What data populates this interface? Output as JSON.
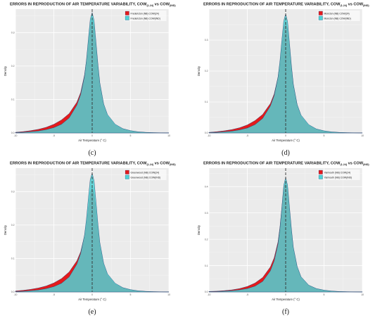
{
  "colors": {
    "panel_bg": "#ebebeb",
    "grid_major": "#ffffff",
    "grid_minor": "#f4f4f4",
    "series_24": "#e41a1c",
    "series_ind": "#4fd3d6",
    "outline": "#1f3a6b"
  },
  "chart_data": [
    {
      "type": "area",
      "caption": "(c)",
      "title_main": "ERRORS IN REPRODUCTION OF AIR TEMPERATURE VARIABILITY, COW",
      "title_sub1": "(1-24)",
      "title_vs": " vs COW",
      "title_sub2": "(IND)",
      "xlabel": "Air Temperature (° C)",
      "ylabel": "Density",
      "xlim": [
        -10,
        10
      ],
      "ylim": [
        0,
        0.37
      ],
      "x_ticks": [
        "-10",
        "-5",
        "0",
        "5",
        "10"
      ],
      "y_ticks": [
        "0.0",
        "0.1",
        "0.2",
        "0.3"
      ],
      "x_tick_values": [
        -10,
        -5,
        0,
        5,
        10
      ],
      "y_tick_values": [
        0,
        0.1,
        0.2,
        0.3
      ],
      "vline_x": 0,
      "series": [
        {
          "name": "Fredericton (NB) COW(24)",
          "x": [
            -10,
            -9,
            -8,
            -7,
            -6,
            -5,
            -4,
            -3,
            -2,
            -1.5,
            -1,
            -0.75,
            -0.5,
            -0.25,
            0,
            0.25,
            0.5,
            0.75,
            1,
            1.5,
            2,
            3,
            4,
            5,
            6,
            7,
            8,
            9,
            10
          ],
          "y": [
            0.002,
            0.004,
            0.007,
            0.011,
            0.017,
            0.026,
            0.039,
            0.058,
            0.092,
            0.121,
            0.173,
            0.215,
            0.27,
            0.322,
            0.34,
            0.318,
            0.262,
            0.2,
            0.146,
            0.084,
            0.052,
            0.024,
            0.012,
            0.006,
            0.003,
            0.0015,
            0.0008,
            0.0004,
            0.0002
          ]
        },
        {
          "name": "Fredericton (NB) COW(IND)",
          "x": [
            -10,
            -9,
            -8,
            -7,
            -6,
            -5,
            -4,
            -3,
            -2,
            -1.5,
            -1,
            -0.75,
            -0.5,
            -0.25,
            0,
            0.25,
            0.5,
            0.75,
            1,
            1.5,
            2,
            3,
            4,
            5,
            6,
            7,
            8,
            9,
            10
          ],
          "y": [
            0.001,
            0.002,
            0.004,
            0.006,
            0.01,
            0.016,
            0.026,
            0.045,
            0.083,
            0.115,
            0.17,
            0.218,
            0.28,
            0.34,
            0.36,
            0.336,
            0.272,
            0.206,
            0.15,
            0.087,
            0.055,
            0.026,
            0.013,
            0.007,
            0.0035,
            0.0018,
            0.0009,
            0.0005,
            0.0002
          ]
        }
      ]
    },
    {
      "type": "area",
      "caption": "(d)",
      "title_main": "ERRORS IN REPRODUCTION OF AIR TEMPERATURE VARIABILITY, COW",
      "title_sub1": "(1-24)",
      "title_vs": " vs COW",
      "title_sub2": "(IND)",
      "xlabel": "Air Temperature (° C)",
      "ylabel": "Density",
      "xlim": [
        -10,
        10
      ],
      "ylim": [
        0,
        0.4
      ],
      "x_ticks": [
        "-10",
        "-5",
        "0",
        "5",
        "10"
      ],
      "y_ticks": [
        "0.0",
        "0.1",
        "0.2",
        "0.3"
      ],
      "x_tick_values": [
        -10,
        -5,
        0,
        5,
        10
      ],
      "y_tick_values": [
        0,
        0.1,
        0.2,
        0.3
      ],
      "vline_x": 0,
      "series": [
        {
          "name": "Moncton (NB) COW(24)",
          "x": [
            -10,
            -9,
            -8,
            -7,
            -6,
            -5,
            -4,
            -3,
            -2,
            -1.5,
            -1,
            -0.75,
            -0.5,
            -0.25,
            0,
            0.25,
            0.5,
            0.75,
            1,
            1.5,
            2,
            3,
            4,
            5,
            6,
            7,
            8,
            9,
            10
          ],
          "y": [
            0.002,
            0.004,
            0.007,
            0.011,
            0.017,
            0.026,
            0.04,
            0.06,
            0.095,
            0.126,
            0.18,
            0.225,
            0.285,
            0.34,
            0.36,
            0.337,
            0.278,
            0.212,
            0.155,
            0.09,
            0.055,
            0.025,
            0.012,
            0.006,
            0.003,
            0.0015,
            0.0008,
            0.0004,
            0.0002
          ]
        },
        {
          "name": "Moncton (NB) COW(IND)",
          "x": [
            -10,
            -9,
            -8,
            -7,
            -6,
            -5,
            -4,
            -3,
            -2,
            -1.5,
            -1,
            -0.75,
            -0.5,
            -0.25,
            0,
            0.25,
            0.5,
            0.75,
            1,
            1.5,
            2,
            3,
            4,
            5,
            6,
            7,
            8,
            9,
            10
          ],
          "y": [
            0.001,
            0.002,
            0.004,
            0.006,
            0.01,
            0.016,
            0.027,
            0.047,
            0.087,
            0.121,
            0.18,
            0.232,
            0.3,
            0.362,
            0.385,
            0.36,
            0.29,
            0.218,
            0.158,
            0.092,
            0.058,
            0.027,
            0.013,
            0.007,
            0.0035,
            0.0018,
            0.0009,
            0.0005,
            0.0002
          ]
        }
      ]
    },
    {
      "type": "area",
      "caption": "(e)",
      "title_main": "ERRORS IN REPRODUCTION OF AIR TEMPERATURE VARIABILITY, COW",
      "title_sub1": "(1-24)",
      "title_vs": " vs COW",
      "title_sub2": "(IND)",
      "xlabel": "Air Temperature (° C)",
      "ylabel": "Density",
      "xlim": [
        -10,
        10
      ],
      "ylim": [
        0,
        0.37
      ],
      "x_ticks": [
        "-10",
        "-5",
        "0",
        "5",
        "10"
      ],
      "y_ticks": [
        "0.0",
        "0.1",
        "0.2",
        "0.3"
      ],
      "x_tick_values": [
        -10,
        -5,
        0,
        5,
        10
      ],
      "y_tick_values": [
        0,
        0.1,
        0.2,
        0.3
      ],
      "vline_x": 0,
      "series": [
        {
          "name": "Greenwood (NB) COW(24)",
          "x": [
            -10,
            -9,
            -8,
            -7,
            -6,
            -5,
            -4,
            -3,
            -2,
            -1.5,
            -1,
            -0.75,
            -0.5,
            -0.25,
            0,
            0.25,
            0.5,
            0.75,
            1,
            1.5,
            2,
            3,
            4,
            5,
            6,
            7,
            8,
            9,
            10
          ],
          "y": [
            0.003,
            0.005,
            0.008,
            0.012,
            0.018,
            0.027,
            0.04,
            0.06,
            0.093,
            0.12,
            0.168,
            0.206,
            0.255,
            0.3,
            0.315,
            0.296,
            0.246,
            0.19,
            0.14,
            0.082,
            0.051,
            0.024,
            0.012,
            0.006,
            0.003,
            0.0015,
            0.0008,
            0.0004,
            0.0002
          ]
        },
        {
          "name": "Greenwood (NB) COW(IND)",
          "x": [
            -10,
            -9,
            -8,
            -7,
            -6,
            -5,
            -4,
            -3,
            -2,
            -1.5,
            -1,
            -0.75,
            -0.5,
            -0.25,
            0,
            0.25,
            0.5,
            0.75,
            1,
            1.5,
            2,
            3,
            4,
            5,
            6,
            7,
            8,
            9,
            10
          ],
          "y": [
            0.001,
            0.002,
            0.004,
            0.006,
            0.01,
            0.016,
            0.026,
            0.045,
            0.083,
            0.115,
            0.17,
            0.218,
            0.28,
            0.337,
            0.355,
            0.332,
            0.27,
            0.204,
            0.148,
            0.086,
            0.054,
            0.026,
            0.013,
            0.007,
            0.0035,
            0.0018,
            0.0009,
            0.0005,
            0.0002
          ]
        }
      ]
    },
    {
      "type": "area",
      "caption": "(f)",
      "title_main": "ERRORS IN REPRODUCTION OF AIR TEMPERATURE VARIABILITY, COW",
      "title_sub1": "(1-24)",
      "title_vs": " vs COW",
      "title_sub2": "(IND)",
      "xlabel": "Air Temperature (° C)",
      "ylabel": "Density",
      "xlim": [
        -10,
        10
      ],
      "ylim": [
        0,
        0.47
      ],
      "x_ticks": [
        "-10",
        "-5",
        "0",
        "5",
        "10"
      ],
      "y_ticks": [
        "0.0",
        "0.1",
        "0.2",
        "0.3",
        "0.4"
      ],
      "x_tick_values": [
        -10,
        -5,
        0,
        5,
        10
      ],
      "y_tick_values": [
        0,
        0.1,
        0.2,
        0.3,
        0.4
      ],
      "vline_x": 0,
      "series": [
        {
          "name": "Yarmouth (NB) COW(24)",
          "x": [
            -10,
            -9,
            -8,
            -7,
            -6,
            -5,
            -4,
            -3,
            -2,
            -1.5,
            -1,
            -0.75,
            -0.5,
            -0.25,
            0,
            0.25,
            0.5,
            0.75,
            1,
            1.5,
            2,
            3,
            4,
            5,
            6,
            7,
            8,
            9,
            10
          ],
          "y": [
            0.002,
            0.003,
            0.005,
            0.008,
            0.013,
            0.021,
            0.034,
            0.055,
            0.095,
            0.13,
            0.19,
            0.245,
            0.32,
            0.395,
            0.42,
            0.39,
            0.31,
            0.232,
            0.165,
            0.094,
            0.056,
            0.025,
            0.012,
            0.006,
            0.003,
            0.0015,
            0.0008,
            0.0004,
            0.0002
          ]
        },
        {
          "name": "Yarmouth (NB) COW(IND)",
          "x": [
            -10,
            -9,
            -8,
            -7,
            -6,
            -5,
            -4,
            -3,
            -2,
            -1.5,
            -1,
            -0.75,
            -0.5,
            -0.25,
            0,
            0.25,
            0.5,
            0.75,
            1,
            1.5,
            2,
            3,
            4,
            5,
            6,
            7,
            8,
            9,
            10
          ],
          "y": [
            0.001,
            0.0015,
            0.003,
            0.005,
            0.008,
            0.013,
            0.022,
            0.04,
            0.08,
            0.118,
            0.182,
            0.24,
            0.32,
            0.405,
            0.435,
            0.405,
            0.322,
            0.24,
            0.17,
            0.097,
            0.058,
            0.026,
            0.013,
            0.007,
            0.0035,
            0.0018,
            0.0009,
            0.0005,
            0.0002
          ]
        }
      ]
    }
  ]
}
